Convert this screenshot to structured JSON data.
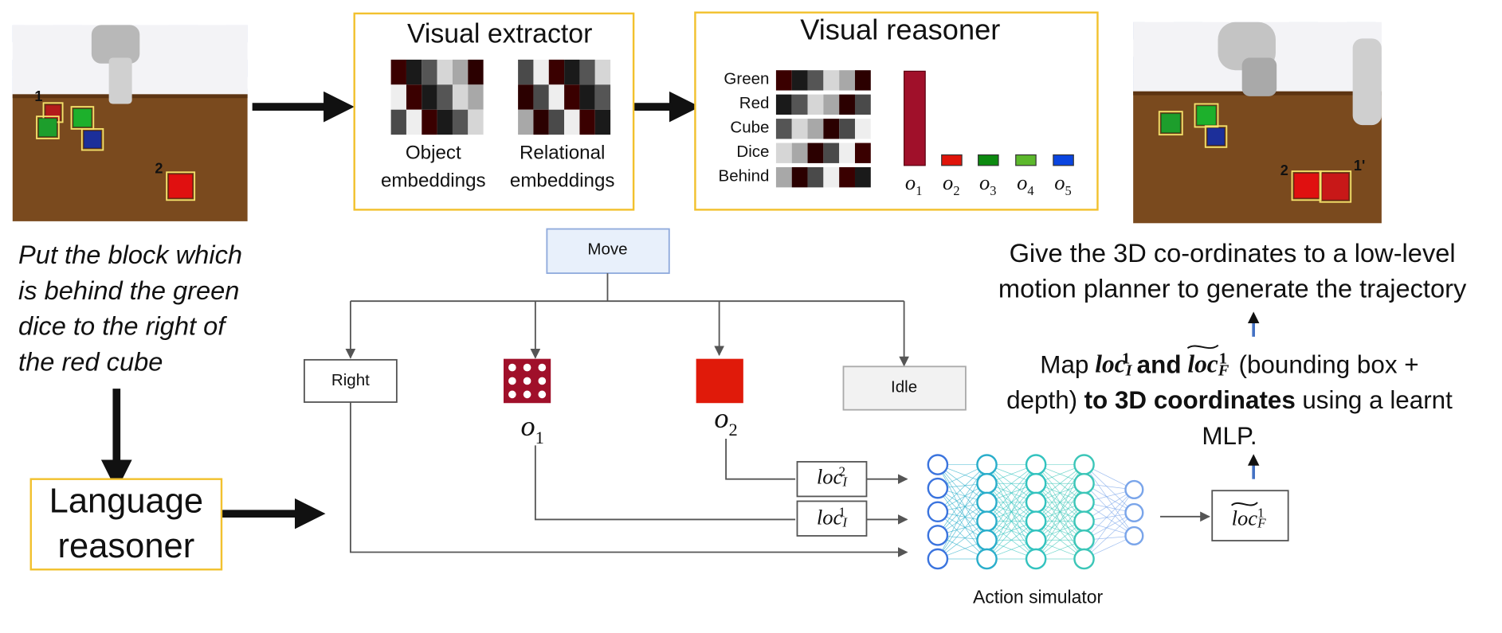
{
  "scenes": {
    "before": {
      "labels": [
        "1",
        "2"
      ]
    },
    "after": {
      "labels": [
        "2",
        "1'"
      ]
    }
  },
  "instruction": {
    "lines": [
      "Put the block which",
      "is behind the green",
      "dice to the right of",
      "the red cube"
    ]
  },
  "language_reasoner": {
    "lines": [
      "Language",
      "reasoner"
    ]
  },
  "visual_extractor": {
    "title": "Visual extractor",
    "object_label": [
      "Object",
      "embeddings"
    ],
    "relational_label": [
      "Relational",
      "embeddings"
    ]
  },
  "visual_reasoner": {
    "title": "Visual reasoner",
    "concepts": [
      "Green",
      "Red",
      "Cube",
      "Dice",
      "Behind"
    ],
    "objects": [
      {
        "symbol": "o",
        "index": "1"
      },
      {
        "symbol": "o",
        "index": "2"
      },
      {
        "symbol": "o",
        "index": "3"
      },
      {
        "symbol": "o",
        "index": "4"
      },
      {
        "symbol": "o",
        "index": "5"
      }
    ]
  },
  "program": {
    "root": "Move",
    "children": [
      {
        "label": "Right"
      },
      {
        "symbol": "o",
        "index": "1"
      },
      {
        "symbol": "o",
        "index": "2"
      },
      {
        "label": "Idle"
      }
    ]
  },
  "locs": [
    {
      "base": "loc",
      "sub": "I",
      "sup": "2"
    },
    {
      "base": "loc",
      "sub": "I",
      "sup": "1"
    }
  ],
  "output_loc": {
    "base": "loc",
    "sub": "F",
    "sup": "1"
  },
  "action_simulator": "Action simulator",
  "planner_text": {
    "lines": [
      "Give the 3D co-ordinates to a low-level",
      "motion planner to generate the trajectory"
    ]
  },
  "mapping_text": {
    "line1": {
      "prefix": "Map",
      "loc_i": {
        "base": "loc",
        "sub": "I",
        "sup": "1"
      },
      "and": "and",
      "loc_f": {
        "base": "loc",
        "sub": "F",
        "sup": "1"
      },
      "suffix": "(bounding box +"
    },
    "line2": {
      "prefix": "depth)",
      "bold": "to 3D coordinates",
      "suffix": "using a learnt"
    },
    "line3": "MLP."
  }
}
